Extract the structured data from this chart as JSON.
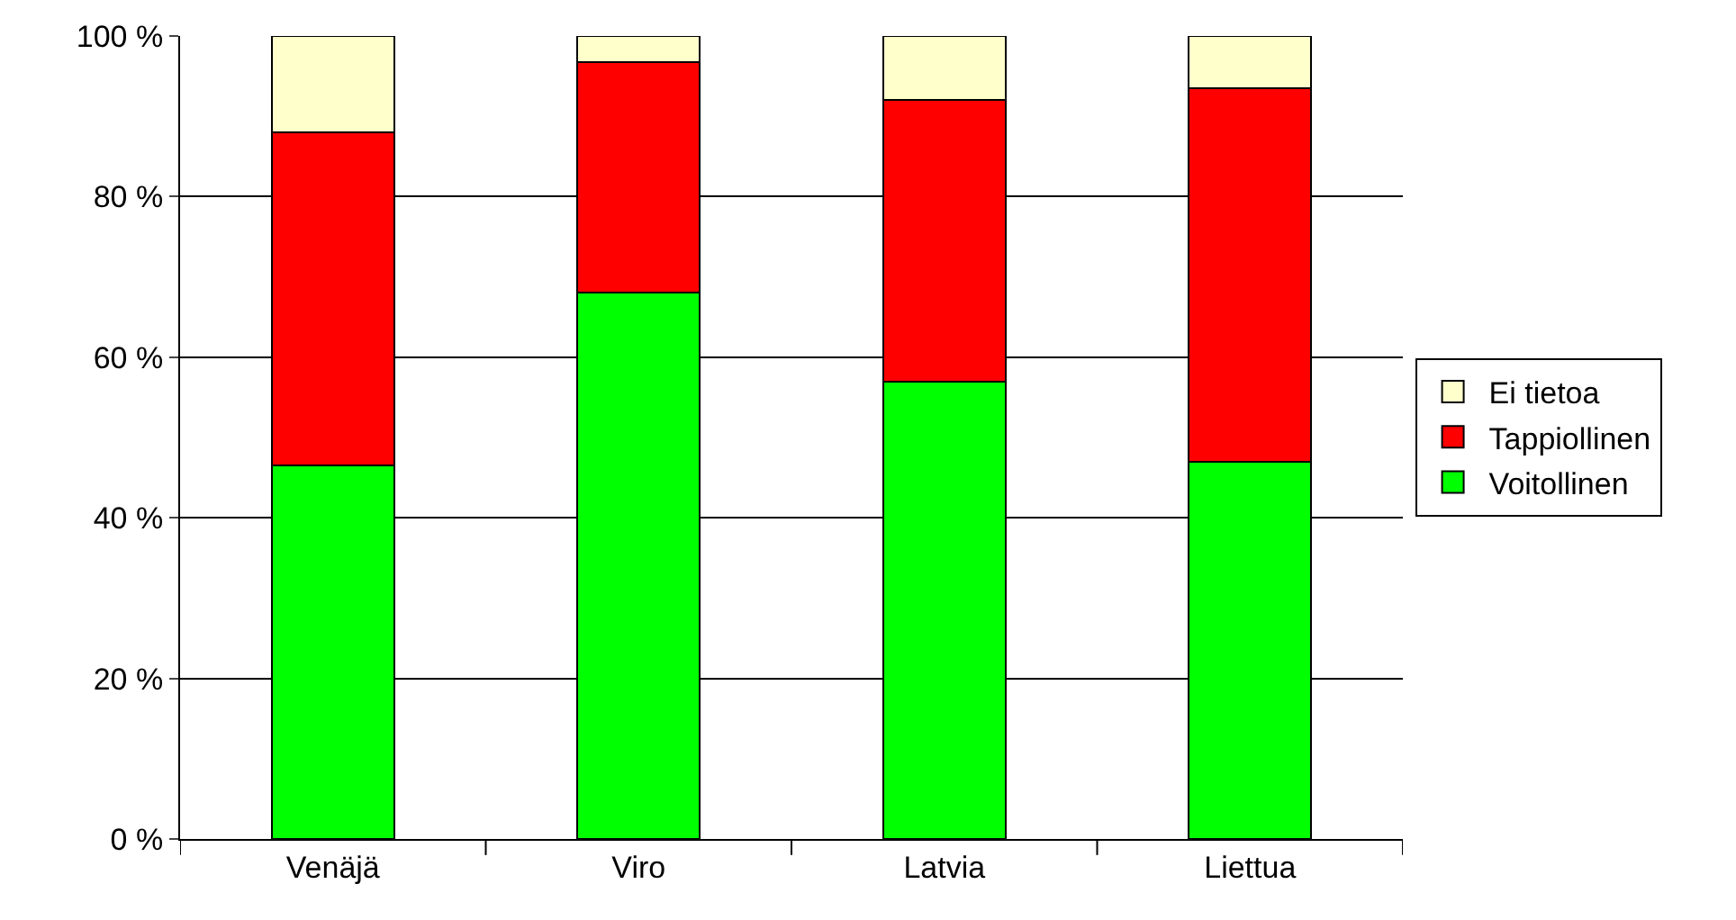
{
  "chart_data": {
    "type": "bar",
    "stacked": true,
    "categories": [
      "Venäjä",
      "Viro",
      "Latvia",
      "Liettua"
    ],
    "series": [
      {
        "name": "Voitollinen",
        "color": "#00ff00",
        "values": [
          46.5,
          68,
          57,
          47
        ]
      },
      {
        "name": "Tappiollinen",
        "color": "#ff0000",
        "values": [
          41.5,
          28.8,
          35,
          46.5
        ]
      },
      {
        "name": "Ei tietoa",
        "color": "#ffffcc",
        "values": [
          12,
          3.2,
          8,
          6.5
        ]
      }
    ],
    "ylim": [
      0,
      100
    ],
    "yticks": [
      {
        "value": 0,
        "label": "0 %"
      },
      {
        "value": 20,
        "label": "20 %"
      },
      {
        "value": 40,
        "label": "40 %"
      },
      {
        "value": 60,
        "label": "60 %"
      },
      {
        "value": 80,
        "label": "80 %"
      },
      {
        "value": 100,
        "label": "100 %"
      }
    ],
    "grid": "y",
    "legend": "right"
  }
}
